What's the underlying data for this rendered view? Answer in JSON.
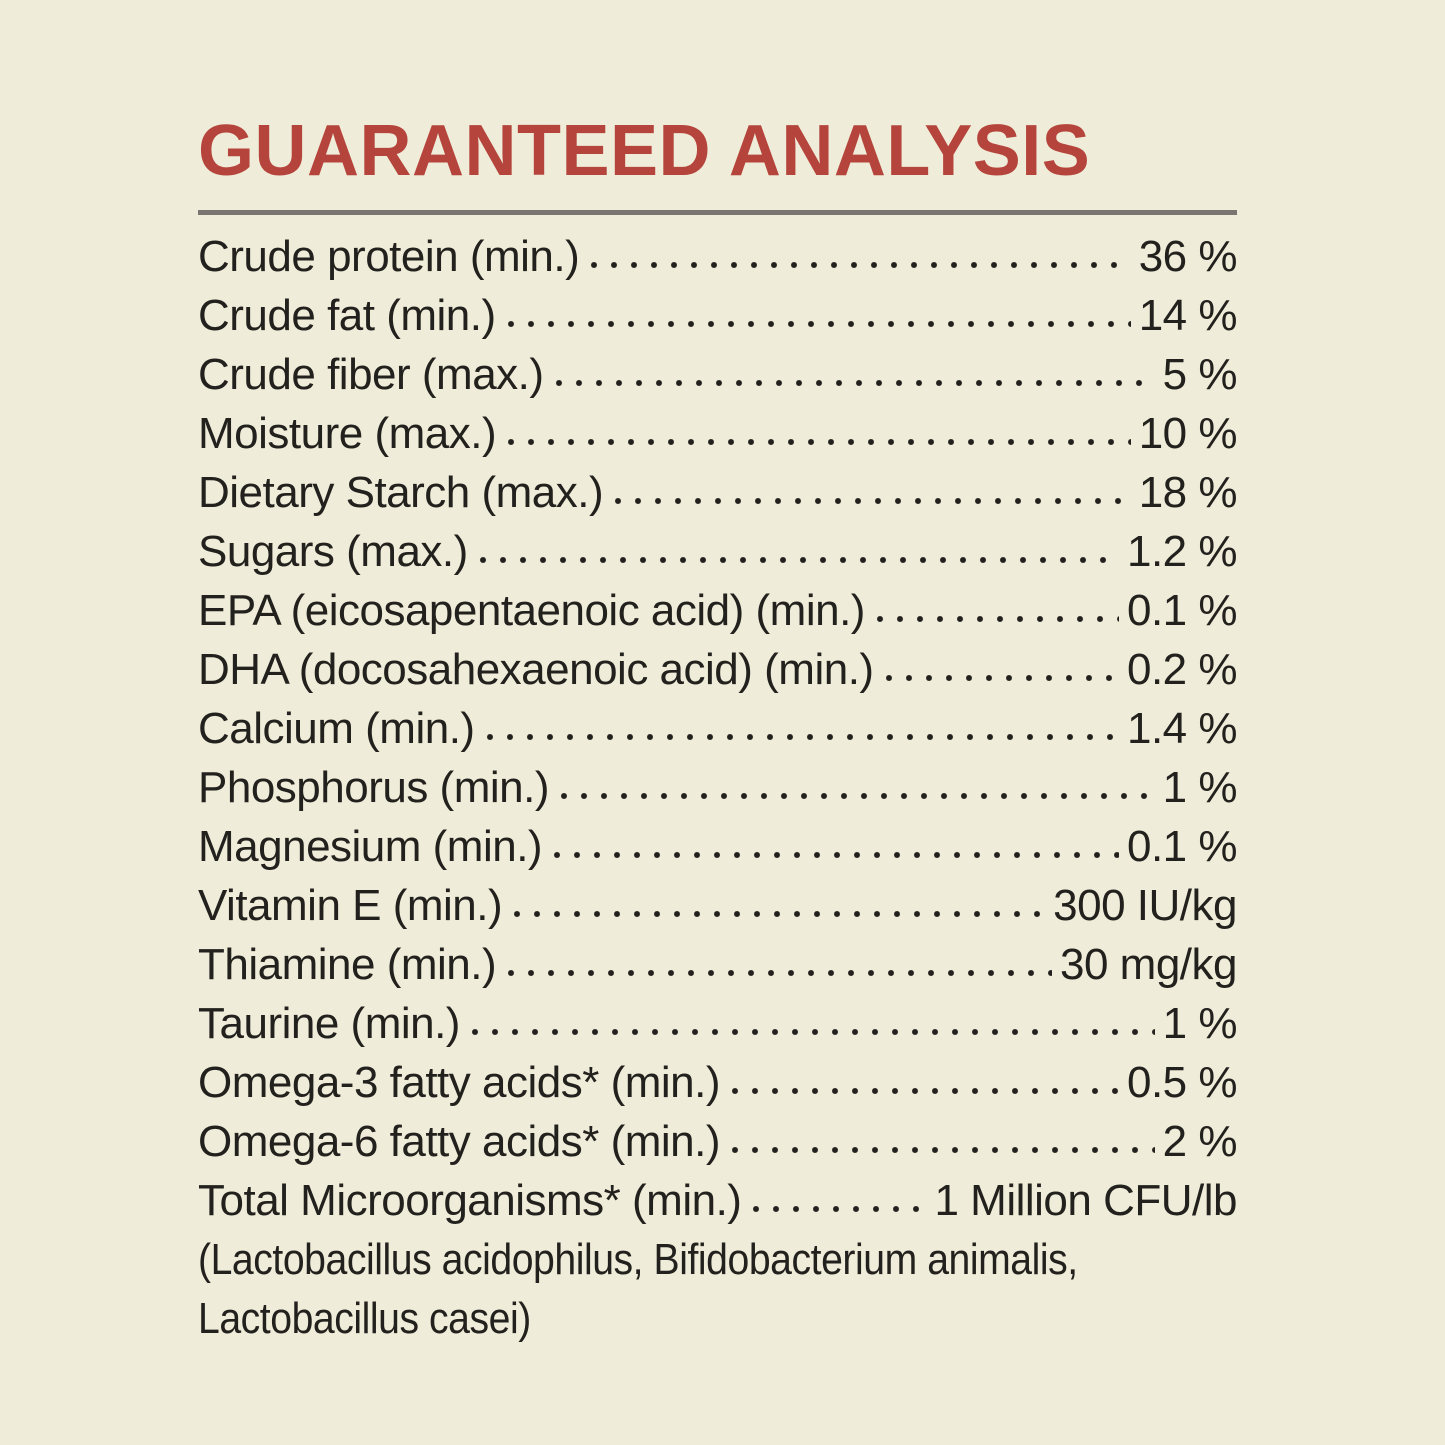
{
  "theme": {
    "background": "#efecd9",
    "text": "#23211d",
    "accent_red": "#b5453c",
    "rule_gray": "#7a7571"
  },
  "header": {
    "title": "GUARANTEED ANALYSIS"
  },
  "analysis": {
    "rows": [
      {
        "label": "Crude protein (min.)",
        "value": "36 %"
      },
      {
        "label": "Crude fat (min.)",
        "value": "14 %"
      },
      {
        "label": "Crude fiber (max.)",
        "value": "5 %"
      },
      {
        "label": "Moisture (max.)",
        "value": "10 %"
      },
      {
        "label": "Dietary Starch (max.)",
        "value": "18 %"
      },
      {
        "label": "Sugars (max.)",
        "value": "1.2 %"
      },
      {
        "label": "EPA (eicosapentaenoic acid) (min.)",
        "value": "0.1 %"
      },
      {
        "label": "DHA (docosahexaenoic acid) (min.)",
        "value": "0.2 %"
      },
      {
        "label": "Calcium (min.)",
        "value": "1.4 %"
      },
      {
        "label": "Phosphorus (min.)",
        "value": "1 %"
      },
      {
        "label": "Magnesium (min.)",
        "value": "0.1 %"
      },
      {
        "label": "Vitamin E (min.)",
        "value": "300 IU/kg"
      },
      {
        "label": "Thiamine (min.)",
        "value": "30 mg/kg"
      },
      {
        "label": "Taurine (min.)",
        "value": "1 %"
      },
      {
        "label": "Omega-3 fatty acids* (min.)",
        "value": "0.5 %"
      },
      {
        "label": "Omega-6 fatty acids* (min.)",
        "value": "2 %"
      },
      {
        "label": "Total Microorganisms* (min.)",
        "value": "1 Million CFU/lb"
      }
    ],
    "footnote_lines": [
      "(Lactobacillus acidophilus, Bifidobacterium animalis,",
      "Lactobacillus casei)"
    ]
  }
}
